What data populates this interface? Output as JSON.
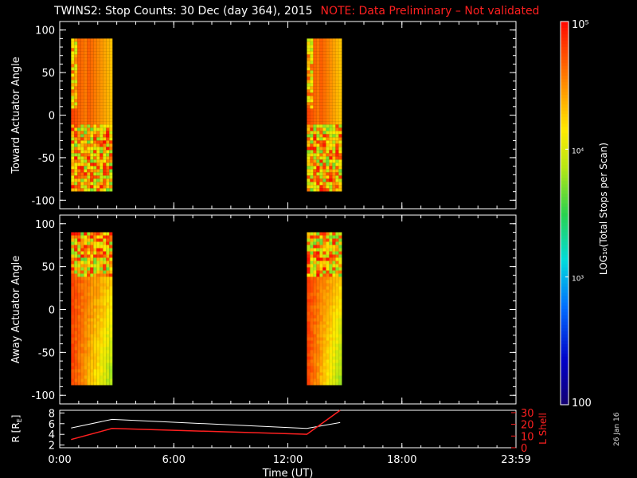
{
  "header": {
    "title": "TWINS2: Stop Counts: 30 Dec (day 364), 2015",
    "note": "NOTE: Data Preliminary – Not validated"
  },
  "date_stamp": "26 Jan 16",
  "colors": {
    "background": "#000000",
    "axes": "#ffffff",
    "note": "#ff2020",
    "lshell": "#ff2020",
    "r_line": "#ffffff"
  },
  "chart_data": [
    {
      "type": "heatmap",
      "title": "",
      "ylabel": "Toward Actuator Angle",
      "ylim": [
        -110,
        110
      ],
      "yticks": [
        100,
        50,
        0,
        -50,
        -100
      ],
      "xlim": [
        0,
        24
      ],
      "data_blocks": [
        {
          "t_start": 0.6,
          "t_end": 2.75,
          "angle_range": [
            -88,
            90
          ]
        },
        {
          "t_start": 13.0,
          "t_end": 14.75,
          "angle_range": [
            -88,
            90
          ]
        }
      ]
    },
    {
      "type": "heatmap",
      "title": "",
      "ylabel": "Away Actuator Angle",
      "ylim": [
        -110,
        110
      ],
      "yticks": [
        100,
        50,
        0,
        -50,
        -100
      ],
      "xlim": [
        0,
        24
      ],
      "xlabel": "",
      "data_blocks": [
        {
          "t_start": 0.6,
          "t_end": 2.75,
          "angle_range": [
            -88,
            90
          ]
        },
        {
          "t_start": 13.0,
          "t_end": 14.75,
          "angle_range": [
            -88,
            90
          ]
        }
      ]
    },
    {
      "type": "line",
      "xlabel": "Time (UT)",
      "xlim": [
        0,
        24
      ],
      "xtick_labels": [
        "0:00",
        "6:00",
        "12:00",
        "18:00",
        "23:59"
      ],
      "xtick_hours": [
        0,
        6,
        12,
        18,
        24
      ],
      "y_left_label": "R [RE]",
      "y_left_ticks": [
        2,
        4,
        6,
        8
      ],
      "y_left_lim": [
        1.5,
        8.5
      ],
      "y_right_label": "L Shell",
      "y_right_ticks": [
        0,
        10,
        20,
        30
      ],
      "y_right_lim": [
        0,
        32
      ],
      "series": [
        {
          "name": "R [RE]",
          "axis": "left",
          "x": [
            0.6,
            2.75,
            13.0,
            14.75
          ],
          "y": [
            5.2,
            6.8,
            5.1,
            6.2
          ]
        },
        {
          "name": "L Shell",
          "axis": "right",
          "x": [
            0.6,
            2.75,
            13.0,
            14.75
          ],
          "y": [
            7,
            16.5,
            11.5,
            33
          ]
        }
      ]
    }
  ],
  "colorbar": {
    "label": "LOG₁₀(Total Stops per Scan)",
    "tick_labels": [
      "10⁵",
      "10⁴",
      "10³",
      "100"
    ],
    "tick_values": [
      100000,
      10000,
      1000,
      100
    ],
    "range": [
      100,
      100000
    ]
  }
}
